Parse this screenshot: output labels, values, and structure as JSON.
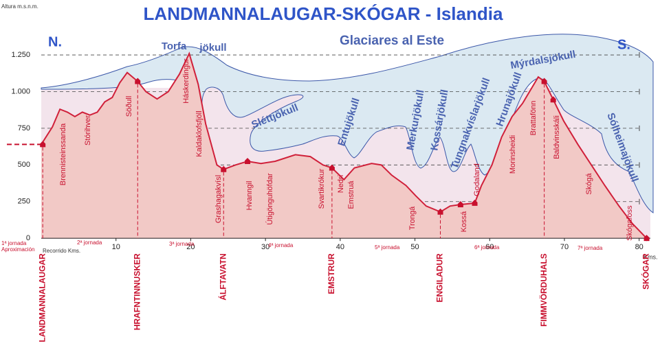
{
  "chart_data": {
    "type": "area",
    "title": "LANDMANNALAUGAR-SKÓGAR  -  Islandia",
    "subtitle": "Glaciares al Este",
    "north": "N.",
    "south": "S.",
    "y_label": "Altura m.s.n.m.",
    "x_label": "Recorrido Kms.",
    "x_unit": "Kms.",
    "xlim": [
      0,
      81.5
    ],
    "ylim": [
      -60,
      1400
    ],
    "xticks": [
      10,
      20,
      30,
      40,
      50,
      60,
      70,
      80
    ],
    "yticks": [
      0,
      250,
      500,
      750,
      {
        "value": 1000,
        "label": "1.000"
      },
      {
        "value": 1250,
        "label": "1.250"
      }
    ],
    "grid": true,
    "series": [
      {
        "color": "#d0203a",
        "x": [
          0,
          1.5,
          2.5,
          3.5,
          4.5,
          5.5,
          6.5,
          7.5,
          8.5,
          9.5,
          10.5,
          11.5,
          12.9,
          14,
          15.5,
          17,
          18.5,
          19.8,
          21,
          22,
          23.5,
          24.4,
          26,
          27.6,
          29.4,
          31.3,
          34,
          36,
          37.7,
          38.9,
          40.5,
          41.9,
          44.2,
          45.5,
          46.9,
          48.8,
          50.1,
          51.5,
          53.4,
          54.7,
          56.1,
          58,
          58.9,
          60.3,
          61.6,
          63,
          64.4,
          65.8,
          66.5,
          67.3,
          68.5,
          69.9,
          71.8,
          73.6,
          75.4,
          77.3,
          79.1,
          81
        ],
        "values": [
          640,
          760,
          880,
          860,
          830,
          860,
          840,
          860,
          930,
          960,
          1060,
          1130,
          1070,
          1000,
          950,
          1000,
          1120,
          1260,
          1050,
          780,
          500,
          470,
          500,
          525,
          510,
          525,
          570,
          557,
          500,
          480,
          400,
          480,
          510,
          500,
          430,
          360,
          290,
          220,
          180,
          220,
          230,
          240,
          360,
          500,
          690,
          830,
          920,
          1040,
          1100,
          1070,
          945,
          800,
          640,
          500,
          360,
          220,
          100,
          0
        ]
      }
    ],
    "huts": [
      {
        "name": "LANDMANNALAUGAR",
        "x": 0.2,
        "value": 640
      },
      {
        "name": "HRAFNTINNUSKER",
        "x": 12.9,
        "value": 1070
      },
      {
        "name": "ÁLFTAVATN",
        "x": 24.4,
        "value": 470
      },
      {
        "name": "EMSTRUR",
        "x": 38.9,
        "value": 480
      },
      {
        "name": "ENGILADUR",
        "x": 53.4,
        "value": 180
      },
      {
        "name": "FIMMVÖRDUHALS",
        "x": 67.3,
        "value": 1070
      },
      {
        "name": "SKÓGAR",
        "x": 81,
        "value": 0
      }
    ],
    "extra_huts": [
      {
        "x": 27.6,
        "value": 525
      },
      {
        "x": 56.1,
        "value": 230
      },
      {
        "x": 58,
        "value": 240
      },
      {
        "x": 68.5,
        "value": 945
      }
    ],
    "places": [
      "Brennisteinssanda",
      "Stórihver",
      "Söðull",
      "Háskerdingur",
      "Kaldaklofsfjöll",
      "Grashagakvísl",
      "Hvanngil",
      "Útigönguhöfdar",
      "Svartikrókur",
      "Nedri",
      "Emstruá",
      "Trongá",
      "Kossá",
      "Godaland",
      "Morinsheidi",
      "Brattafönn",
      "Baldvinsskáli",
      "Skógá",
      "Skógafoss"
    ],
    "glaciers": [
      "Torfa",
      "jökull",
      "Sléttjökull",
      "Entujökull",
      "Merkurjökull",
      "Kossárjökull",
      "Tungnakvíslarjökull",
      "Hrunajökull",
      "Mýrdalsjökull",
      "Sólheimajökull"
    ],
    "stages": [
      "1ª jornada",
      "Aproximación",
      "2ª jornada",
      "3ª jornada",
      "4ª jornada",
      "5ª jornada",
      "6ª jornada",
      "7ª jornada"
    ]
  }
}
